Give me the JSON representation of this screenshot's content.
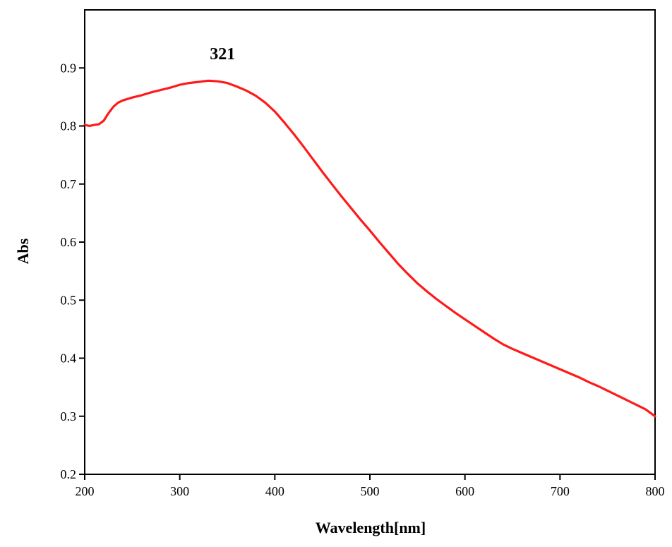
{
  "chart_data": {
    "type": "line",
    "title": "",
    "xlabel": "Wavelength[nm]",
    "ylabel": "Abs",
    "xlim": [
      200,
      800
    ],
    "ylim": [
      0.2,
      1.0
    ],
    "xticks": [
      "200",
      "300",
      "400",
      "500",
      "600",
      "700",
      "800"
    ],
    "yticks": [
      "0.2",
      "0.3",
      "0.4",
      "0.5",
      "0.6",
      "0.7",
      "0.8",
      "0.9"
    ],
    "grid": false,
    "legend": "none",
    "annotations": [
      {
        "text": "321",
        "x": 345,
        "y": 0.915
      }
    ],
    "series": [
      {
        "color": "#ff1a1a",
        "x": [
          200,
          205,
          210,
          215,
          220,
          225,
          230,
          235,
          240,
          250,
          260,
          270,
          280,
          290,
          300,
          310,
          320,
          330,
          340,
          350,
          360,
          370,
          380,
          390,
          400,
          410,
          420,
          430,
          440,
          450,
          460,
          470,
          480,
          490,
          500,
          510,
          520,
          530,
          540,
          550,
          560,
          570,
          580,
          590,
          600,
          610,
          620,
          630,
          640,
          650,
          660,
          670,
          680,
          690,
          700,
          710,
          720,
          730,
          740,
          750,
          760,
          770,
          780,
          790,
          800
        ],
        "y": [
          0.802,
          0.8,
          0.802,
          0.803,
          0.809,
          0.822,
          0.833,
          0.84,
          0.844,
          0.849,
          0.853,
          0.858,
          0.862,
          0.866,
          0.871,
          0.874,
          0.876,
          0.878,
          0.877,
          0.874,
          0.868,
          0.861,
          0.852,
          0.84,
          0.825,
          0.806,
          0.786,
          0.765,
          0.743,
          0.721,
          0.7,
          0.679,
          0.659,
          0.639,
          0.62,
          0.6,
          0.581,
          0.562,
          0.545,
          0.529,
          0.515,
          0.502,
          0.49,
          0.478,
          0.467,
          0.456,
          0.445,
          0.434,
          0.424,
          0.416,
          0.409,
          0.402,
          0.395,
          0.388,
          0.381,
          0.374,
          0.367,
          0.359,
          0.352,
          0.344,
          0.336,
          0.328,
          0.32,
          0.312,
          0.3
        ]
      }
    ]
  }
}
